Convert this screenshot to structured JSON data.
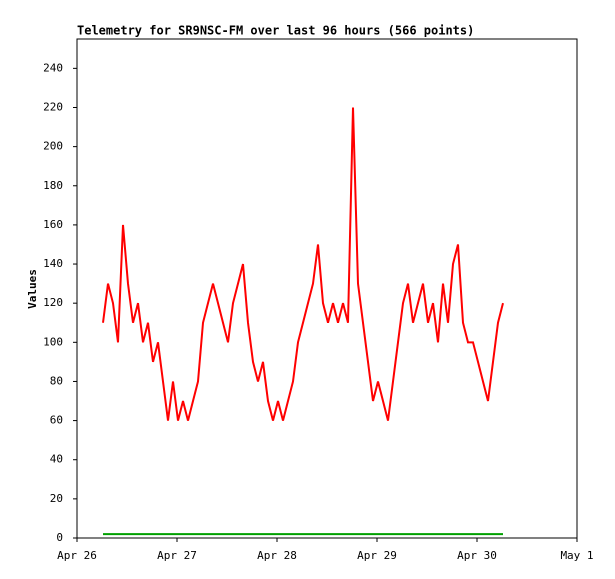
{
  "chart_data": {
    "type": "line",
    "title": "Telemetry for SR9NSC-FM over last 96 hours (566 points)",
    "y_label": "Values",
    "x": [
      0.26,
      0.31,
      0.36,
      0.41,
      0.46,
      0.51,
      0.56,
      0.61,
      0.66,
      0.71,
      0.76,
      0.81,
      0.86,
      0.91,
      0.96,
      1.01,
      1.06,
      1.11,
      1.16,
      1.21,
      1.26,
      1.31,
      1.36,
      1.41,
      1.46,
      1.51,
      1.56,
      1.61,
      1.66,
      1.71,
      1.76,
      1.81,
      1.86,
      1.91,
      1.96,
      2.01,
      2.06,
      2.11,
      2.16,
      2.21,
      2.26,
      2.31,
      2.36,
      2.41,
      2.46,
      2.51,
      2.56,
      2.61,
      2.66,
      2.71,
      2.76,
      2.81,
      2.86,
      2.91,
      2.96,
      3.01,
      3.06,
      3.11,
      3.16,
      3.21,
      3.26,
      3.31,
      3.36,
      3.41,
      3.46,
      3.51,
      3.56,
      3.61,
      3.66,
      3.71,
      3.76,
      3.81,
      3.86,
      3.91,
      3.96,
      4.01,
      4.06,
      4.11,
      4.16,
      4.21,
      4.26
    ],
    "series": [
      {
        "color": "#ff0000",
        "values": [
          110,
          130,
          120,
          100,
          160,
          130,
          110,
          120,
          100,
          110,
          90,
          100,
          80,
          60,
          80,
          60,
          70,
          60,
          70,
          80,
          110,
          120,
          130,
          120,
          110,
          100,
          120,
          130,
          140,
          110,
          90,
          80,
          90,
          70,
          60,
          70,
          60,
          70,
          80,
          100,
          110,
          120,
          130,
          150,
          120,
          110,
          120,
          110,
          120,
          110,
          220,
          130,
          110,
          90,
          70,
          80,
          70,
          60,
          80,
          100,
          120,
          130,
          110,
          120,
          130,
          110,
          120,
          100,
          130,
          110,
          140,
          150,
          110,
          100,
          100,
          90,
          80,
          70,
          90,
          110,
          120
        ]
      },
      {
        "color": "#00a000",
        "values": [
          2,
          2,
          2,
          2,
          2,
          2,
          2,
          2,
          2,
          2,
          2,
          2,
          2,
          2,
          2,
          2,
          2,
          2,
          2,
          2,
          2,
          2,
          2,
          2,
          2,
          2,
          2,
          2,
          2,
          2,
          2,
          2,
          2,
          2,
          2,
          2,
          2,
          2,
          2,
          2,
          2,
          2,
          2,
          2,
          2,
          2,
          2,
          2,
          2,
          2,
          2,
          2,
          2,
          2,
          2,
          2,
          2,
          2,
          2,
          2,
          2,
          2,
          2,
          2,
          2,
          2,
          2,
          2,
          2,
          2,
          2,
          2,
          2,
          2,
          2,
          2,
          2,
          2,
          2,
          2,
          2
        ]
      }
    ],
    "xlim": [
      0,
      5
    ],
    "xticks": [
      {
        "value": 0,
        "label": "Apr 26"
      },
      {
        "value": 1,
        "label": "Apr 27"
      },
      {
        "value": 2,
        "label": "Apr 28"
      },
      {
        "value": 3,
        "label": "Apr 29"
      },
      {
        "value": 4,
        "label": "Apr 30"
      },
      {
        "value": 5,
        "label": "May 1"
      }
    ],
    "ylim": [
      0,
      255
    ],
    "yticks": [
      0,
      20,
      40,
      60,
      80,
      100,
      120,
      140,
      160,
      180,
      200,
      220,
      240
    ]
  }
}
